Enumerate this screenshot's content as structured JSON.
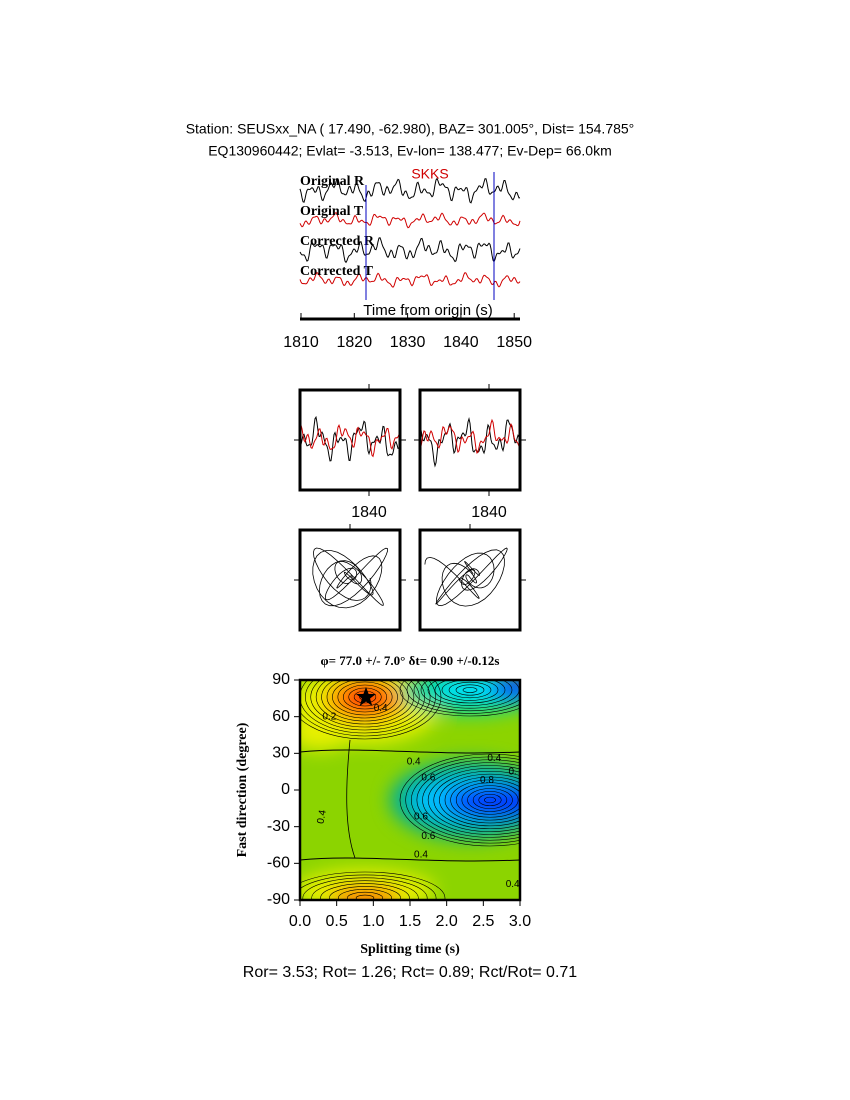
{
  "header": {
    "line1": "Station: SEUSxx_NA (  17.490,  -62.980), BAZ=  301.005°, Dist=  154.785°",
    "line2": "EQ130960442; Evlat=  -3.513, Ev-lon= 138.477; Ev-Dep= 66.0km"
  },
  "traces": {
    "phase": "SKKS",
    "labels": [
      "Original R",
      "Original T",
      "Corrected R",
      "Corrected T"
    ],
    "xlabel": "Time from origin (s)",
    "xticks": [
      1810,
      1820,
      1830,
      1840,
      1850
    ]
  },
  "zoom": {
    "xticks": [
      1840,
      1840
    ]
  },
  "splitting": {
    "title": "φ= 77.0 +/- 7.0° δt= 0.90 +/-0.12s",
    "ylabel": "Fast direction (degree)",
    "xlabel": "Splitting time (s)",
    "xticks": [
      {
        "value": 0,
        "label": "0.0"
      },
      {
        "value": 0.5,
        "label": "0.5"
      },
      {
        "value": 1,
        "label": "1.0"
      },
      {
        "value": 1.5,
        "label": "1.5"
      },
      {
        "value": 2,
        "label": "2.0"
      },
      {
        "value": 2.5,
        "label": "2.5"
      },
      {
        "value": 3,
        "label": "3.0"
      }
    ],
    "yticks": [
      -90,
      -60,
      -30,
      0,
      30,
      60,
      90
    ],
    "contour_labels": [
      "0.2",
      "0.4",
      "0.4",
      "0.6",
      "0.4",
      "0.8",
      "0.",
      "0.4",
      "0.6",
      "0.6",
      "0.4",
      "0.4"
    ]
  },
  "footer": "Ror= 3.53; Rot= 1.26; Rct= 0.89; Rct/Rot= 0.71"
}
